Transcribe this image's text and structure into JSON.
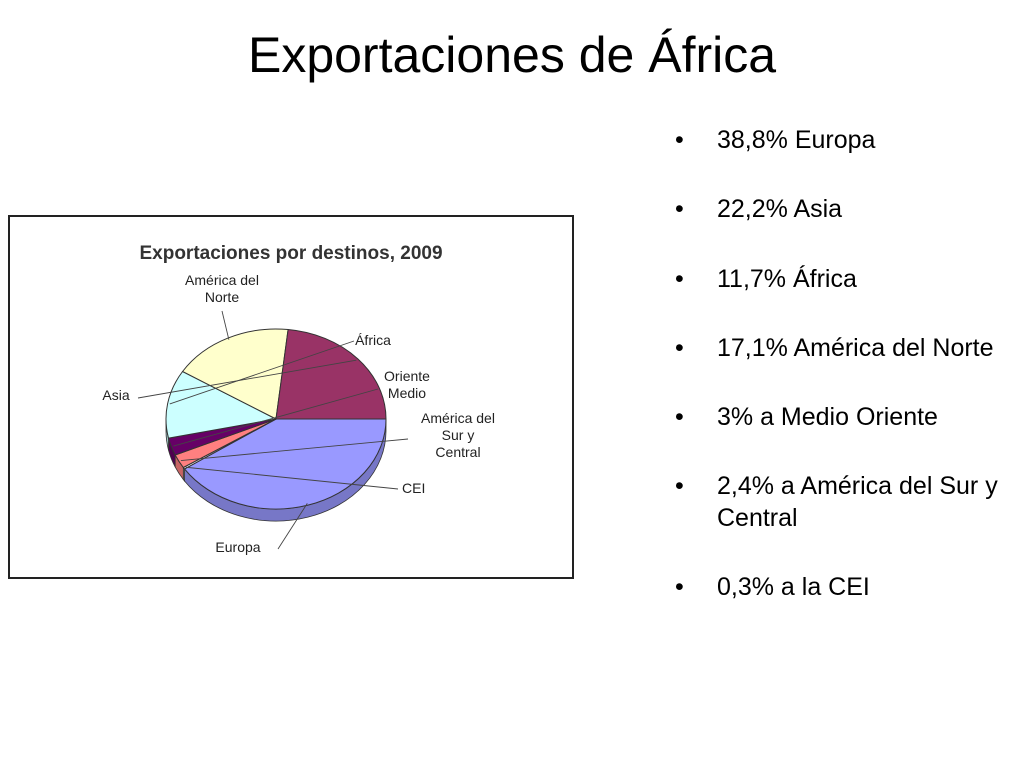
{
  "slide": {
    "title": "Exportaciones de África"
  },
  "bullets": [
    "38,8% Europa",
    "22,2% Asia",
    "11,7% África",
    "17,1% América del Norte",
    "3% a Medio Oriente",
    "2,4% a América del Sur y Central",
    "0,3% a la CEI"
  ],
  "chart_data": {
    "type": "pie",
    "title": "Exportaciones por destinos, 2009",
    "slices": [
      {
        "label": "Europa",
        "value": 38.8,
        "color": "#9999ff"
      },
      {
        "label": "CEI",
        "value": 0.3,
        "color": "#ffffff"
      },
      {
        "label": "América del Sur y Central",
        "value": 2.4,
        "color": "#ff8080"
      },
      {
        "label": "Oriente Medio",
        "value": 3.0,
        "color": "#660066"
      },
      {
        "label": "África",
        "value": 11.7,
        "color": "#ccffff"
      },
      {
        "label": "América del Norte",
        "value": 17.1,
        "color": "#ffffcc"
      },
      {
        "label": "Asia",
        "value": 22.2,
        "color": "#993366"
      }
    ],
    "legend": "callout labels"
  }
}
